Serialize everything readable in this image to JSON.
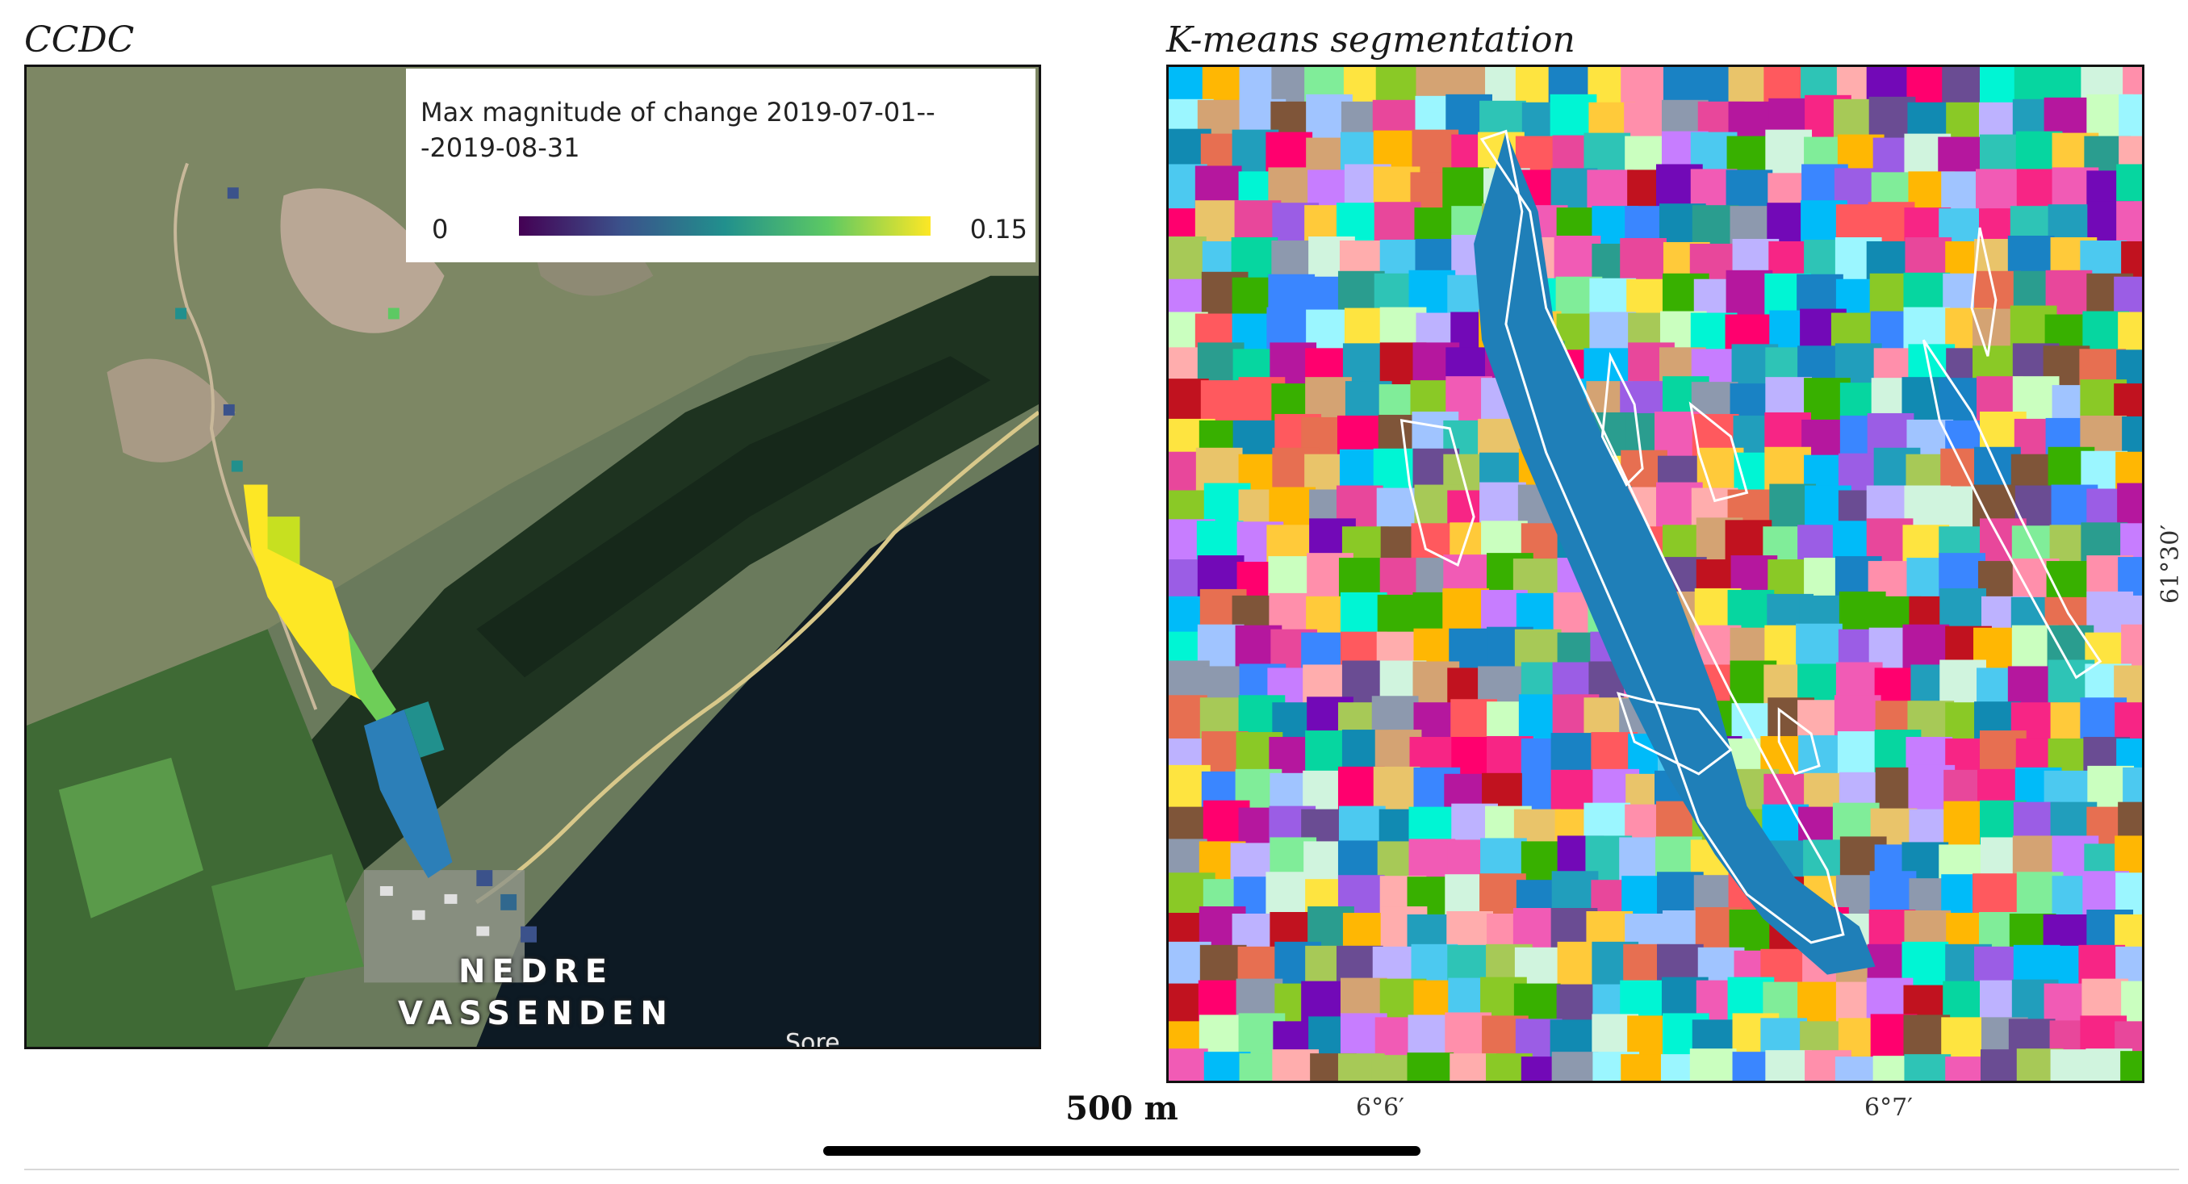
{
  "panels": [
    {
      "title": "CCDC"
    },
    {
      "title": "K-means segmentation"
    }
  ],
  "ccdc": {
    "legend": {
      "title": "Max magnitude of change 2019-07-01---2019-08-31",
      "min_label": "0",
      "max_label": "0.15",
      "colormap": [
        "#440154",
        "#3b528b",
        "#21908d",
        "#5dc963",
        "#fde725"
      ]
    },
    "place_label_line1": "NEDRE",
    "place_label_line2": "VASSENDEN",
    "road_label": "Sore"
  },
  "kmeans": {
    "x_ticks": [
      "6°6′",
      "6°7′"
    ],
    "y_tick": "61°30′"
  },
  "scale_bar": {
    "label": "500 m"
  },
  "colors": {
    "lake": "#0d1a24",
    "forest_dark": "#1e3320",
    "grass_light": "#4e7a3c",
    "river_blue": "#1f7fb8",
    "outline": "#ffffff"
  }
}
